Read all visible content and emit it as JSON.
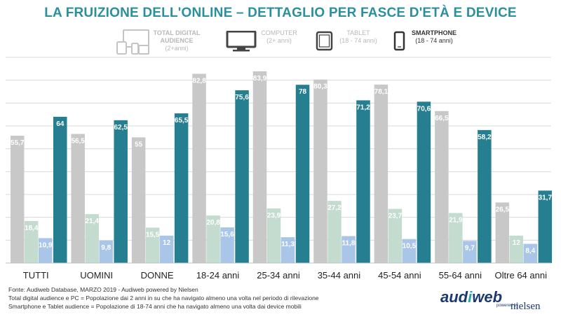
{
  "title": "LA FRUIZIONE DELL'ONLINE – DETTAGLIO PER FASCE D'ETÀ E DEVICE",
  "legend": [
    {
      "icon": "devices-icon",
      "line1": "TOTAL DIGITAL",
      "line2": "AUDIENCE",
      "line3": "(2+anni)",
      "color": "#c4c4c4"
    },
    {
      "icon": "computer-icon",
      "line1": "COMPUTER",
      "line2": "(2+ anni)",
      "color": "#bfbfbf"
    },
    {
      "icon": "tablet-icon",
      "line1": "TABLET",
      "line2": "(18 - 74 anni)",
      "color": "#bfbfbf"
    },
    {
      "icon": "smartphone-icon",
      "line1": "SMARTPHONE",
      "line2": "(18 - 74 anni)",
      "color": "#333333"
    }
  ],
  "chart_data": {
    "type": "bar",
    "title": "LA FRUIZIONE DELL'ONLINE – DETTAGLIO PER FASCE D'ETÀ E DEVICE",
    "categories": [
      "TUTTI",
      "UOMINI",
      "DONNE",
      "18-24 anni",
      "25-34 anni",
      "35-44 anni",
      "45-54 anni",
      "55-64 anni",
      "Oltre 64 anni"
    ],
    "series": [
      {
        "name": "TOTAL DIGITAL AUDIENCE",
        "color": "#c8c8c8",
        "values": [
          55.7,
          56.5,
          55,
          82.8,
          83.9,
          80.3,
          78.1,
          66.5,
          26.5
        ],
        "labels": [
          "55,7",
          "56,5",
          "55",
          "82,8",
          "83,9",
          "80,3",
          "78,1",
          "66,5",
          "26,5"
        ]
      },
      {
        "name": "COMPUTER",
        "color": "#c4dccf",
        "values": [
          18.4,
          21.4,
          15.5,
          20.8,
          23.9,
          27.2,
          23.7,
          21.9,
          12
        ],
        "labels": [
          "18,4",
          "21,4",
          "15,5",
          "20,8",
          "23,9",
          "27,2",
          "23,7",
          "21,9",
          "12"
        ]
      },
      {
        "name": "TABLET",
        "color": "#a9c6e8",
        "values": [
          10.9,
          9.8,
          12,
          15.6,
          11.3,
          11.8,
          10.5,
          9.7,
          8.4
        ],
        "labels": [
          "10,9",
          "9,8",
          "12",
          "15,6",
          "11,3",
          "11,8",
          "10,5",
          "9,7",
          "8,4"
        ]
      },
      {
        "name": "SMARTPHONE",
        "color": "#267f91",
        "values": [
          64,
          62.5,
          65.5,
          75.6,
          78,
          71.2,
          70.6,
          58.2,
          31.7
        ],
        "labels": [
          "64",
          "62,5",
          "65,5",
          "75,6",
          "78",
          "71,2",
          "70,6",
          "58,2",
          "31,7"
        ]
      }
    ],
    "ylim": [
      0,
      90
    ],
    "grid": true
  },
  "source": {
    "line1": "Fonte: Audiweb Database, MARZO 2019 - Audiweb powered by Nielsen",
    "line2": "Total digital audience e PC = Popolazione dai 2 anni in su che ha navigato almeno una volta nel periodo di rilevazione",
    "line3": "Smartphone e Tablet audience = Popolazione di 18-74 anni che ha navigato almeno una volta dai device mobili"
  },
  "logo": {
    "brand_a": "aud",
    "brand_b": "i",
    "brand_c": "web",
    "powered": "powered by",
    "partner": "nielsen"
  }
}
